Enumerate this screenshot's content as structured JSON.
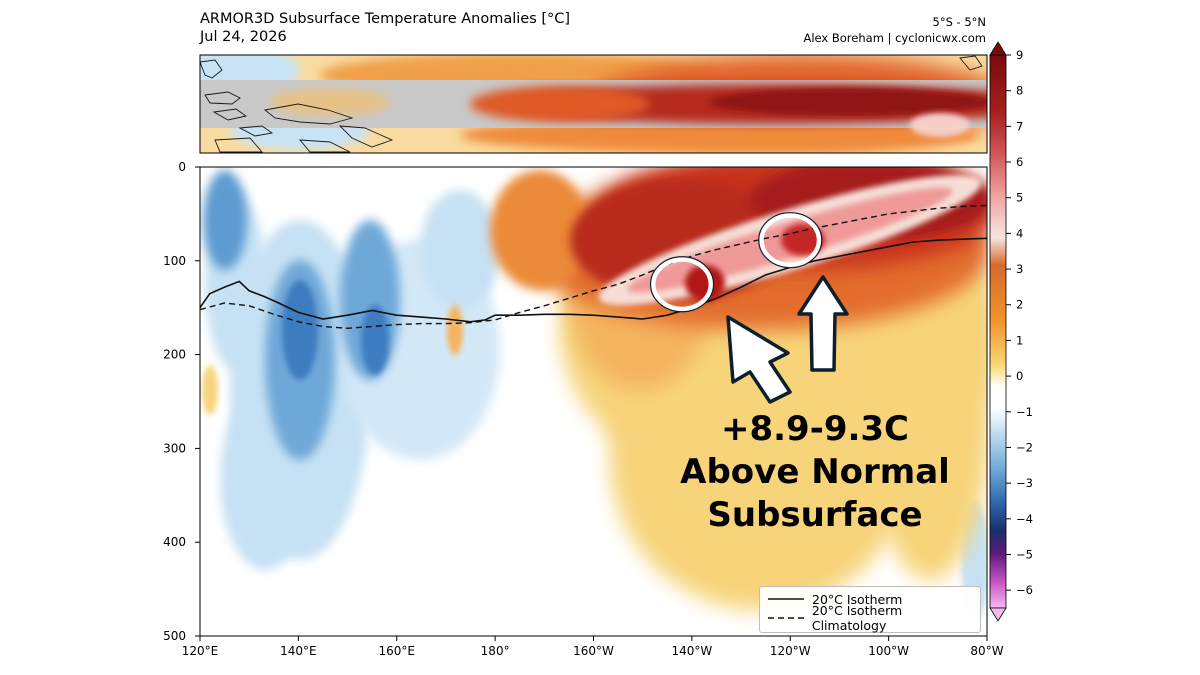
{
  "header": {
    "title": "ARMOR3D Subsurface Temperature Anomalies [°C]",
    "date": "Jul 24, 2026",
    "region": "5°S - 5°N",
    "credit": "Alex Boreham | cyclonicwx.com"
  },
  "callout": {
    "line1": "+8.9-9.3C",
    "line2": "Above Normal",
    "line3": "Subsurface"
  },
  "colors": {
    "strong_warm": "#9e1c1c",
    "warm": "#d8451f",
    "mild_warm": "#f6c45a",
    "cool": "#9ecae1",
    "strong_cool": "#3a7fc1",
    "land_mask": "#c8c8c8",
    "arrow_fill": "#ffffff",
    "arrow_outline": "#0d1f2d"
  },
  "chart_data": [
    {
      "type": "heatmap",
      "panel": "map",
      "x_range_deg_east": [
        120,
        280
      ],
      "y_range_lat": [
        -5,
        5
      ],
      "note_band": "5°S - 5°N"
    },
    {
      "type": "heatmap",
      "panel": "depth-section",
      "x_ticks": [
        "120°E",
        "140°E",
        "160°E",
        "180°",
        "160°W",
        "140°W",
        "120°W",
        "100°W",
        "80°W"
      ],
      "x_tick_values_deg_east": [
        120,
        140,
        160,
        180,
        200,
        220,
        240,
        260,
        280
      ],
      "xlim": [
        120,
        280
      ],
      "y_ticks": [
        "0",
        "100",
        "200",
        "300",
        "400",
        "500"
      ],
      "y_tick_values": [
        0,
        100,
        200,
        300,
        400,
        500
      ],
      "ylim": [
        500,
        0
      ],
      "legend_position": "bottom-right",
      "series": [
        {
          "name": "20°C Isotherm",
          "style": "solid",
          "x": [
            120,
            122,
            125,
            128,
            130,
            133,
            136,
            140,
            145,
            150,
            155,
            160,
            165,
            170,
            175,
            178,
            180,
            185,
            190,
            195,
            200,
            205,
            210,
            215,
            220,
            225,
            230,
            235,
            240,
            245,
            250,
            255,
            260,
            265,
            270,
            275,
            280
          ],
          "y": [
            150,
            135,
            128,
            122,
            132,
            138,
            145,
            155,
            162,
            158,
            153,
            158,
            160,
            162,
            165,
            163,
            158,
            158,
            157,
            157,
            158,
            160,
            162,
            158,
            150,
            140,
            128,
            115,
            107,
            100,
            95,
            90,
            85,
            80,
            78,
            77,
            76
          ]
        },
        {
          "name": "20°C Isotherm Climatology",
          "style": "dashed",
          "x": [
            120,
            125,
            130,
            135,
            140,
            145,
            150,
            155,
            160,
            165,
            170,
            175,
            180,
            185,
            190,
            195,
            200,
            205,
            210,
            215,
            220,
            225,
            230,
            235,
            240,
            245,
            250,
            255,
            260,
            265,
            270,
            275,
            280
          ],
          "y": [
            152,
            145,
            148,
            157,
            165,
            170,
            172,
            170,
            168,
            167,
            167,
            166,
            163,
            155,
            148,
            140,
            132,
            125,
            115,
            104,
            95,
            88,
            82,
            76,
            71,
            65,
            60,
            55,
            50,
            47,
            44,
            42,
            41
          ]
        }
      ],
      "highlights": [
        {
          "x": 218,
          "y": 125
        },
        {
          "x": 240,
          "y": 78
        }
      ]
    },
    {
      "type": "colorbar",
      "ticks": [
        9,
        8,
        7,
        6,
        5,
        4,
        3,
        2,
        1,
        0,
        -1,
        -2,
        -3,
        -4,
        -5,
        -6
      ],
      "range": [
        -6.5,
        9.0
      ]
    }
  ]
}
